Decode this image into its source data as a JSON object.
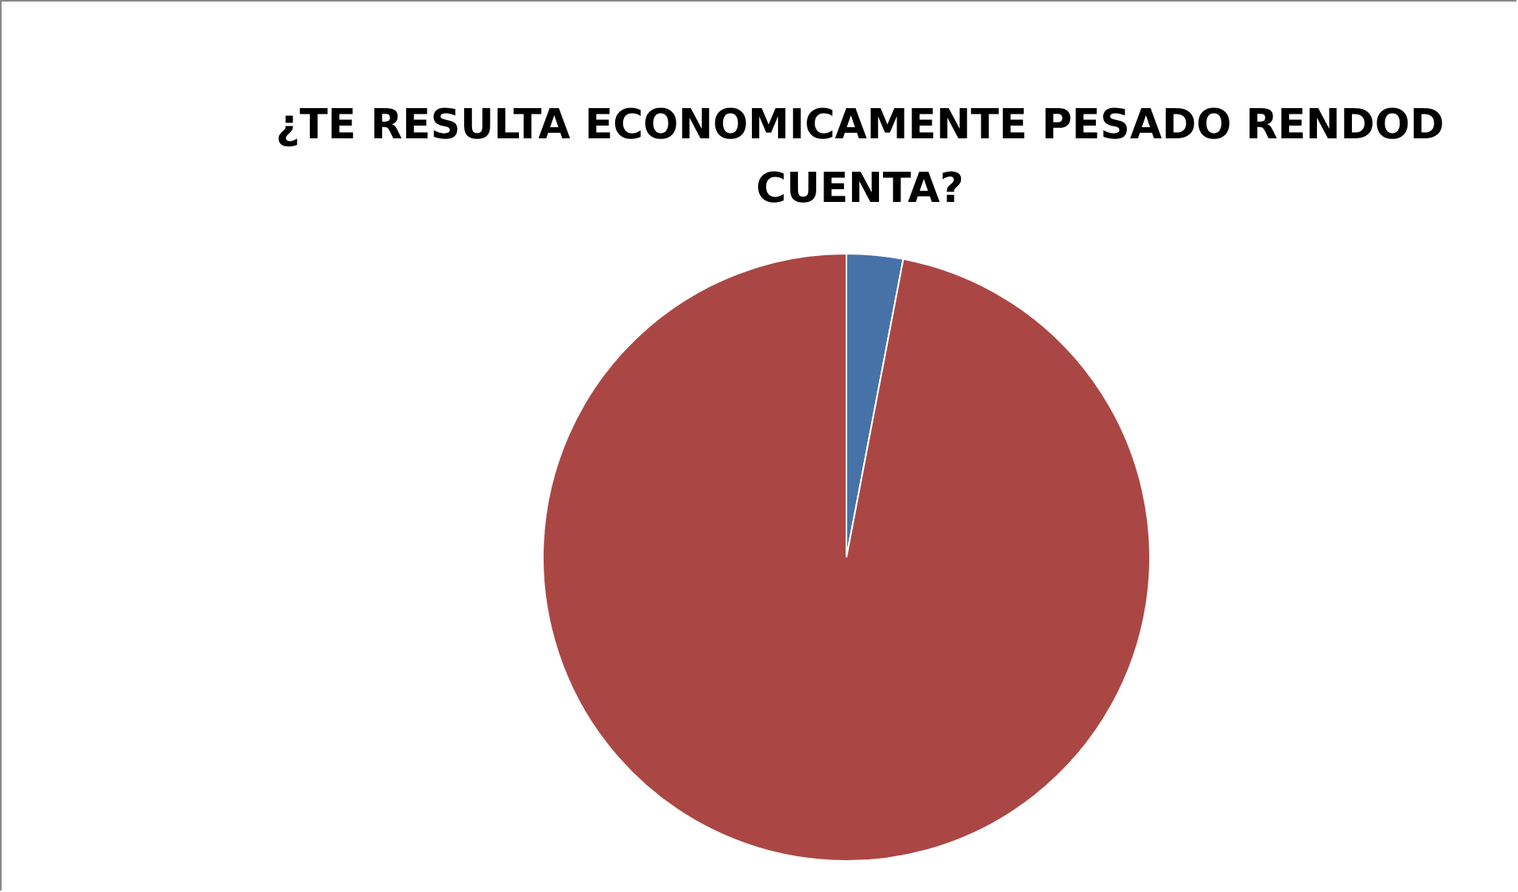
{
  "chart_data": {
    "type": "pie",
    "title": "¿TE RESULTA ECONOMICAMENTE PESADO RENDOD CUENTA?",
    "categories": [
      null,
      null
    ],
    "values": [
      3,
      97
    ],
    "colors": [
      "#4672a8",
      "#aa4744"
    ],
    "legend": false
  }
}
